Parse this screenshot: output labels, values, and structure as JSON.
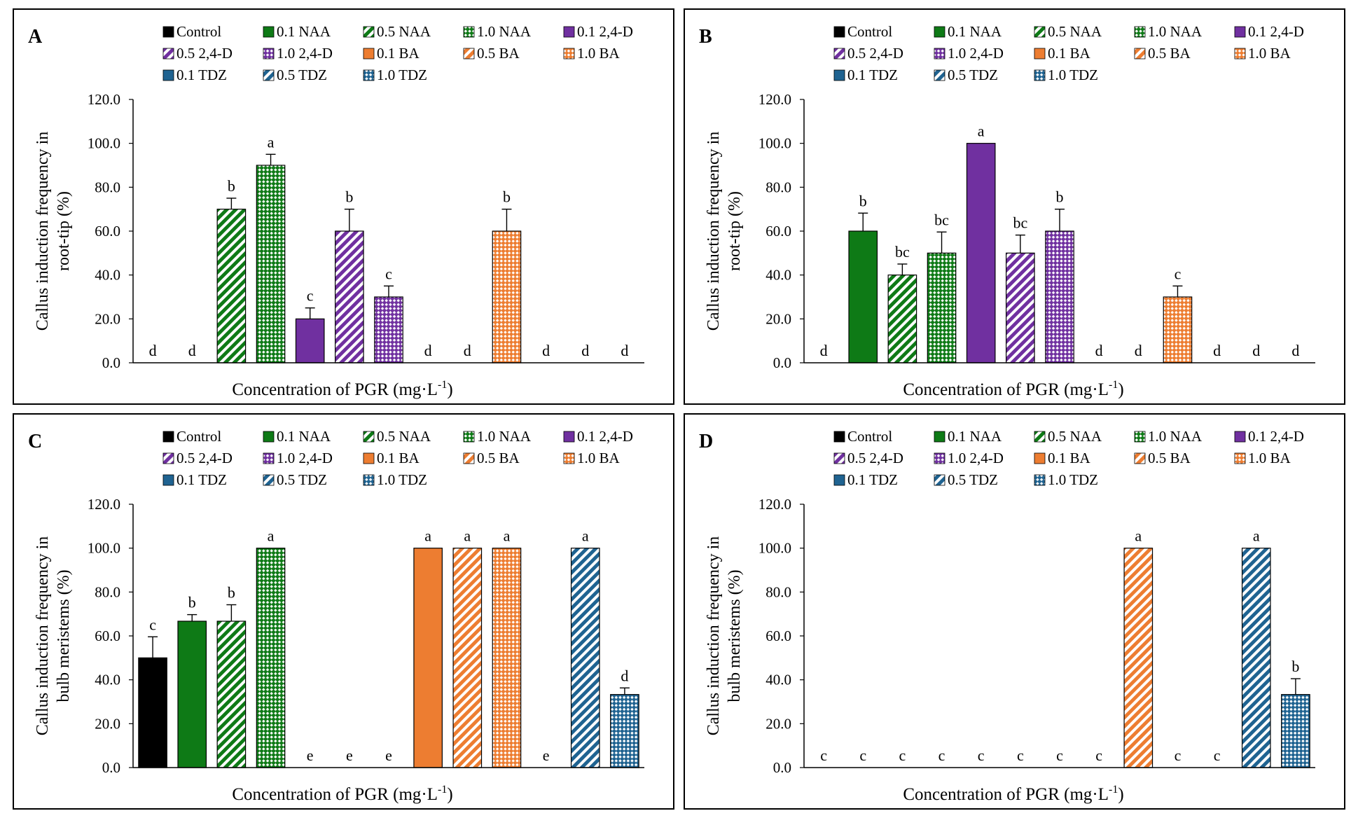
{
  "colors": {
    "control": "#000000",
    "naa": "#0e7a16",
    "24d": "#7030a0",
    "ba": "#ed7d31",
    "tdz": "#1f6391"
  },
  "legend": [
    {
      "label": "Control",
      "group": "control",
      "pattern": "solid"
    },
    {
      "label": "0.1 NAA",
      "group": "naa",
      "pattern": "solid"
    },
    {
      "label": "0.5 NAA",
      "group": "naa",
      "pattern": "diag"
    },
    {
      "label": "1.0 NAA",
      "group": "naa",
      "pattern": "check"
    },
    {
      "label": "0.1 2,4-D",
      "group": "24d",
      "pattern": "solid"
    },
    {
      "label": "0.5 2,4-D",
      "group": "24d",
      "pattern": "diag"
    },
    {
      "label": "1.0 2,4-D",
      "group": "24d",
      "pattern": "check"
    },
    {
      "label": "0.1 BA",
      "group": "ba",
      "pattern": "solid"
    },
    {
      "label": "0.5 BA",
      "group": "ba",
      "pattern": "diag"
    },
    {
      "label": "1.0 BA",
      "group": "ba",
      "pattern": "check"
    },
    {
      "label": "0.1 TDZ",
      "group": "tdz",
      "pattern": "solid"
    },
    {
      "label": "0.5 TDZ",
      "group": "tdz",
      "pattern": "diag"
    },
    {
      "label": "1.0 TDZ",
      "group": "tdz",
      "pattern": "check"
    }
  ],
  "chart_data": [
    {
      "panel": "A",
      "type": "bar",
      "ylabel_lines": [
        "Callus induction frequency in",
        "root-tip (%)"
      ],
      "xlabel": "Concentration of PGR (mg·L",
      "xlabel_sup": "-1",
      "xlabel_end": ")",
      "ylim": [
        0,
        120
      ],
      "yticks": [
        "0.0",
        "20.0",
        "40.0",
        "60.0",
        "80.0",
        "100.0",
        "120.0"
      ],
      "categories": [
        "Control",
        "0.1 NAA",
        "0.5 NAA",
        "1.0 NAA",
        "0.1 2,4-D",
        "0.5 2,4-D",
        "1.0 2,4-D",
        "0.1 BA",
        "0.5 BA",
        "1.0 BA",
        "0.1 TDZ",
        "0.5 TDZ",
        "1.0 TDZ"
      ],
      "values": [
        0,
        0,
        70,
        90,
        20,
        60,
        30,
        0,
        0,
        60,
        0,
        0,
        0
      ],
      "errors": [
        0,
        0,
        5,
        5,
        5,
        10,
        5,
        0,
        0,
        10,
        0,
        0,
        0
      ],
      "letters": [
        "d",
        "d",
        "b",
        "a",
        "c",
        "b",
        "c",
        "d",
        "d",
        "b",
        "d",
        "d",
        "d"
      ]
    },
    {
      "panel": "B",
      "type": "bar",
      "ylabel_lines": [
        "Callus induction frequency in",
        "root-tip (%)"
      ],
      "xlabel": "Concentration of PGR (mg·L",
      "xlabel_sup": "-1",
      "xlabel_end": ")",
      "ylim": [
        0,
        120
      ],
      "yticks": [
        "0.0",
        "20.0",
        "40.0",
        "60.0",
        "80.0",
        "100.0",
        "120.0"
      ],
      "categories": [
        "Control",
        "0.1 NAA",
        "0.5 NAA",
        "1.0 NAA",
        "0.1 2,4-D",
        "0.5 2,4-D",
        "1.0 2,4-D",
        "0.1 BA",
        "0.5 BA",
        "1.0 BA",
        "0.1 TDZ",
        "0.5 TDZ",
        "1.0 TDZ"
      ],
      "values": [
        0,
        60,
        40,
        50,
        100,
        50,
        60,
        0,
        0,
        30,
        0,
        0,
        0
      ],
      "errors": [
        0,
        8.2,
        5,
        9.6,
        0,
        8.2,
        10,
        0,
        0,
        5,
        0,
        0,
        0
      ],
      "letters": [
        "d",
        "b",
        "bc",
        "bc",
        "a",
        "bc",
        "b",
        "d",
        "d",
        "c",
        "d",
        "d",
        "d"
      ]
    },
    {
      "panel": "C",
      "type": "bar",
      "ylabel_lines": [
        "Callus induction frequency in",
        "bulb meristems (%)"
      ],
      "xlabel": "Concentration of PGR (mg·L",
      "xlabel_sup": "-1",
      "xlabel_end": ")",
      "ylim": [
        0,
        120
      ],
      "yticks": [
        "0.0",
        "20.0",
        "40.0",
        "60.0",
        "80.0",
        "100.0",
        "120.0"
      ],
      "categories": [
        "Control",
        "0.1 NAA",
        "0.5 NAA",
        "1.0 NAA",
        "0.1 2,4-D",
        "0.5 2,4-D",
        "1.0 2,4-D",
        "0.1 BA",
        "0.5 BA",
        "1.0 BA",
        "0.1 TDZ",
        "0.5 TDZ",
        "1.0 TDZ"
      ],
      "values": [
        50,
        66.7,
        66.7,
        100,
        0,
        0,
        0,
        100,
        100,
        100,
        0,
        100,
        33.3
      ],
      "errors": [
        9.6,
        3,
        7.5,
        0,
        0,
        0,
        0,
        0,
        0,
        0,
        0,
        0,
        3
      ],
      "letters": [
        "c",
        "b",
        "b",
        "a",
        "e",
        "e",
        "e",
        "a",
        "a",
        "a",
        "e",
        "a",
        "d"
      ]
    },
    {
      "panel": "D",
      "type": "bar",
      "ylabel_lines": [
        "Callus induction frequency in",
        "bulb meristems (%)"
      ],
      "xlabel": "Concentration of PGR (mg·L",
      "xlabel_sup": "-1",
      "xlabel_end": ")",
      "ylim": [
        0,
        120
      ],
      "yticks": [
        "0.0",
        "20.0",
        "40.0",
        "60.0",
        "80.0",
        "100.0",
        "120.0"
      ],
      "categories": [
        "Control",
        "0.1 NAA",
        "0.5 NAA",
        "1.0 NAA",
        "0.1 2,4-D",
        "0.5 2,4-D",
        "1.0 2,4-D",
        "0.1 BA",
        "0.5 BA",
        "1.0 BA",
        "0.1 TDZ",
        "0.5 TDZ",
        "1.0 TDZ"
      ],
      "values": [
        0,
        0,
        0,
        0,
        0,
        0,
        0,
        0,
        100,
        0,
        0,
        100,
        33.3
      ],
      "errors": [
        0,
        0,
        0,
        0,
        0,
        0,
        0,
        0,
        0,
        0,
        0,
        0,
        7.2
      ],
      "letters": [
        "c",
        "c",
        "c",
        "c",
        "c",
        "c",
        "c",
        "c",
        "a",
        "c",
        "c",
        "a",
        "b"
      ]
    }
  ]
}
